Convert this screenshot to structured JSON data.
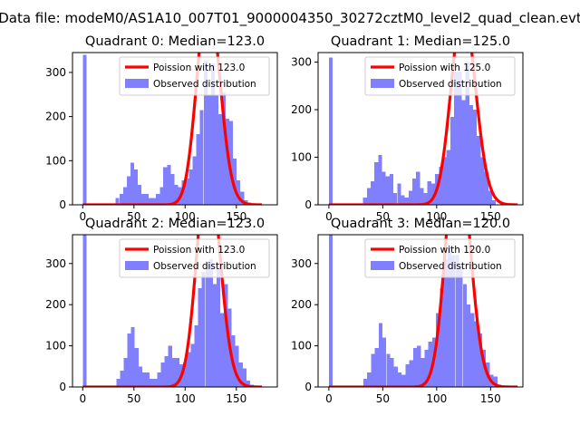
{
  "figure": {
    "suptitle": "Data file: modeM0/AS1A10_007T01_9000004350_30272cztM0_level2_quad_clean.evt"
  },
  "legend": {
    "line_prefix": "Poission with ",
    "bar_label": "Observed distribution"
  },
  "colors": {
    "bars": "#8080ff",
    "poisson": "#ff0000",
    "axis": "#000000"
  },
  "chart_data": [
    {
      "type": "bar",
      "title": "Quadrant 0: Median=123.0",
      "median": "123.0",
      "lambda": 123.0,
      "bin_width": 3.58,
      "bin_starts": [
        0,
        32.2,
        35.8,
        39.4,
        42.9,
        46.5,
        50.1,
        53.7,
        57.3,
        60.8,
        64.4,
        68.0,
        71.6,
        75.2,
        78.7,
        82.3,
        85.9,
        89.5,
        93.1,
        96.6,
        100.2,
        103.8,
        107.4,
        111.0,
        114.5,
        118.1,
        121.7,
        125.3,
        128.9,
        132.4,
        136.0,
        139.6,
        143.2,
        146.8,
        150.3,
        153.9,
        157.5,
        161.1
      ],
      "values": [
        340,
        15,
        25,
        40,
        65,
        95,
        80,
        45,
        25,
        25,
        15,
        15,
        25,
        40,
        85,
        90,
        70,
        45,
        40,
        55,
        60,
        80,
        110,
        160,
        215,
        325,
        250,
        320,
        250,
        205,
        255,
        195,
        190,
        105,
        55,
        30,
        10,
        5
      ],
      "xlim": [
        -10,
        190
      ],
      "ylim": [
        0,
        345
      ],
      "xticks": [
        0,
        50,
        100,
        150
      ],
      "yticks": [
        0,
        100,
        200,
        300
      ]
    },
    {
      "type": "bar",
      "title": "Quadrant 1: Median=125.0",
      "median": "125.0",
      "lambda": 125.0,
      "bin_width": 3.52,
      "bin_starts": [
        0,
        31.7,
        35.2,
        38.7,
        42.2,
        45.8,
        49.3,
        52.8,
        56.3,
        59.8,
        63.4,
        66.9,
        70.4,
        73.9,
        77.5,
        81.0,
        84.5,
        88.0,
        91.5,
        95.0,
        98.6,
        102.1,
        105.6,
        109.1,
        112.7,
        116.2,
        119.7,
        123.2,
        126.8,
        130.3,
        133.8,
        137.3,
        140.8,
        144.4,
        147.9,
        151.4
      ],
      "values": [
        310,
        15,
        35,
        50,
        90,
        105,
        70,
        60,
        65,
        25,
        45,
        20,
        15,
        30,
        55,
        70,
        35,
        25,
        50,
        45,
        65,
        80,
        100,
        115,
        185,
        280,
        280,
        220,
        300,
        210,
        200,
        145,
        100,
        70,
        30,
        10
      ],
      "xlim": [
        -10,
        180
      ],
      "ylim": [
        0,
        320
      ],
      "xticks": [
        0,
        50,
        100,
        150
      ],
      "yticks": [
        0,
        100,
        200,
        300
      ]
    },
    {
      "type": "bar",
      "title": "Quadrant 2: Median=123.0",
      "median": "123.0",
      "lambda": 123.0,
      "bin_width": 3.63,
      "bin_starts": [
        0,
        32.7,
        36.3,
        39.9,
        43.6,
        47.2,
        50.8,
        54.5,
        58.1,
        61.7,
        65.4,
        69.0,
        72.6,
        76.3,
        79.9,
        83.5,
        87.2,
        90.8,
        94.4,
        98.1,
        101.7,
        105.3,
        109.0,
        112.6,
        116.2,
        119.9,
        123.5,
        127.1,
        130.8,
        134.4,
        138.0,
        141.7,
        145.3,
        148.9,
        152.6,
        156.2,
        159.8,
        163.5
      ],
      "values": [
        370,
        20,
        40,
        70,
        130,
        145,
        95,
        50,
        35,
        35,
        20,
        20,
        35,
        60,
        75,
        100,
        70,
        70,
        55,
        60,
        85,
        105,
        150,
        240,
        280,
        305,
        310,
        250,
        300,
        180,
        250,
        190,
        125,
        100,
        60,
        45,
        15,
        5
      ],
      "xlim": [
        -10,
        190
      ],
      "ylim": [
        0,
        370
      ],
      "xticks": [
        0,
        50,
        100,
        150
      ],
      "yticks": [
        0,
        100,
        200,
        300
      ]
    },
    {
      "type": "bar",
      "title": "Quadrant 3: Median=120.0",
      "median": "120.0",
      "lambda": 120.0,
      "bin_width": 3.55,
      "bin_starts": [
        0,
        32.0,
        35.5,
        39.1,
        42.6,
        46.2,
        49.7,
        53.3,
        56.8,
        60.4,
        63.9,
        67.5,
        71.0,
        74.6,
        78.1,
        81.7,
        85.2,
        88.8,
        92.3,
        95.9,
        99.4,
        103.0,
        106.5,
        110.1,
        113.6,
        117.2,
        120.7,
        124.3,
        127.8,
        131.4,
        134.9,
        138.5,
        142.0,
        145.6,
        149.1,
        152.7,
        156.2
      ],
      "values": [
        370,
        20,
        35,
        80,
        95,
        155,
        120,
        80,
        70,
        50,
        35,
        30,
        55,
        65,
        95,
        100,
        70,
        90,
        110,
        120,
        180,
        240,
        310,
        340,
        320,
        320,
        300,
        250,
        200,
        180,
        160,
        130,
        90,
        60,
        30,
        25,
        5
      ],
      "xlim": [
        -10,
        180
      ],
      "ylim": [
        0,
        370
      ],
      "xticks": [
        0,
        50,
        100,
        150
      ],
      "yticks": [
        0,
        100,
        200,
        300
      ]
    }
  ]
}
